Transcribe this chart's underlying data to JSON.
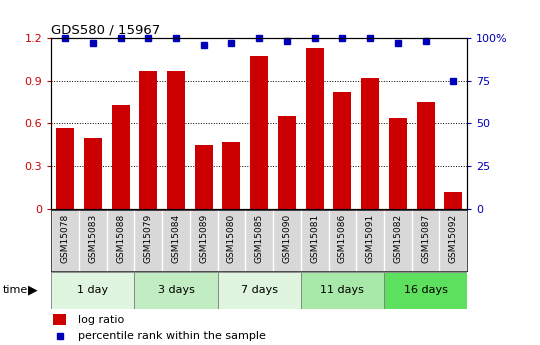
{
  "title": "GDS580 / 15967",
  "samples": [
    "GSM15078",
    "GSM15083",
    "GSM15088",
    "GSM15079",
    "GSM15084",
    "GSM15089",
    "GSM15080",
    "GSM15085",
    "GSM15090",
    "GSM15081",
    "GSM15086",
    "GSM15091",
    "GSM15082",
    "GSM15087",
    "GSM15092"
  ],
  "log_ratio": [
    0.57,
    0.5,
    0.73,
    0.97,
    0.97,
    0.45,
    0.47,
    1.07,
    0.65,
    1.13,
    0.82,
    0.92,
    0.64,
    0.75,
    0.12
  ],
  "percentile": [
    100,
    97,
    100,
    100,
    100,
    96,
    97,
    100,
    98,
    100,
    100,
    100,
    97,
    98,
    75
  ],
  "groups": [
    {
      "label": "1 day",
      "count": 3,
      "color": "#dff5df"
    },
    {
      "label": "3 days",
      "count": 3,
      "color": "#c2ecc2"
    },
    {
      "label": "7 days",
      "count": 3,
      "color": "#dff5df"
    },
    {
      "label": "11 days",
      "count": 3,
      "color": "#a8e8a8"
    },
    {
      "label": "16 days",
      "count": 3,
      "color": "#5de05d"
    }
  ],
  "bar_color": "#cc0000",
  "dot_color": "#0000bb",
  "ylim_left": [
    0,
    1.2
  ],
  "ylim_right": [
    0,
    100
  ],
  "yticks_left": [
    0,
    0.3,
    0.6,
    0.9,
    1.2
  ],
  "yticks_right": [
    0,
    25,
    50,
    75,
    100
  ],
  "ytick_labels_left": [
    "0",
    "0.3",
    "0.6",
    "0.9",
    "1.2"
  ],
  "ytick_labels_right": [
    "0",
    "25",
    "50",
    "75",
    "100%"
  ],
  "left_axis_color": "#cc0000",
  "right_axis_color": "#0000bb",
  "time_label": "time",
  "legend_log_ratio": "log ratio",
  "legend_percentile": "percentile rank within the sample",
  "sample_label_bg": "#d8d8d8",
  "plot_bg_color": "#ffffff",
  "fig_bg_color": "#ffffff"
}
